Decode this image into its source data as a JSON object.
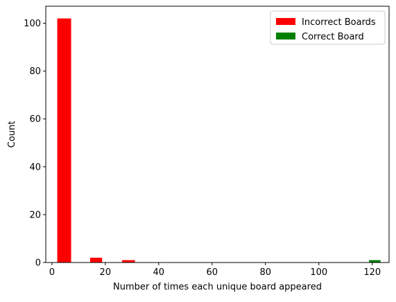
{
  "chart_data": {
    "type": "bar",
    "xlabel": "Number of times each unique board appeared",
    "ylabel": "Count",
    "xlim": [
      -2.3,
      126.3
    ],
    "ylim": [
      0,
      107.1
    ],
    "x_ticks": [
      0,
      20,
      40,
      60,
      80,
      100,
      120
    ],
    "y_ticks": [
      0,
      20,
      40,
      60,
      80,
      100
    ],
    "legend_position": "top-right",
    "grid": false,
    "series": [
      {
        "name": "Incorrect Boards",
        "color": "#ff0000",
        "bins": [
          {
            "x_start": 2.0,
            "x_end": 7.2,
            "value": 102
          },
          {
            "x_start": 14.3,
            "x_end": 18.8,
            "value": 2
          },
          {
            "x_start": 26.3,
            "x_end": 31.1,
            "value": 1
          }
        ]
      },
      {
        "name": "Correct Board",
        "color": "#008000",
        "bins": [
          {
            "x_start": 118.8,
            "x_end": 123.1,
            "value": 1
          }
        ]
      }
    ]
  }
}
